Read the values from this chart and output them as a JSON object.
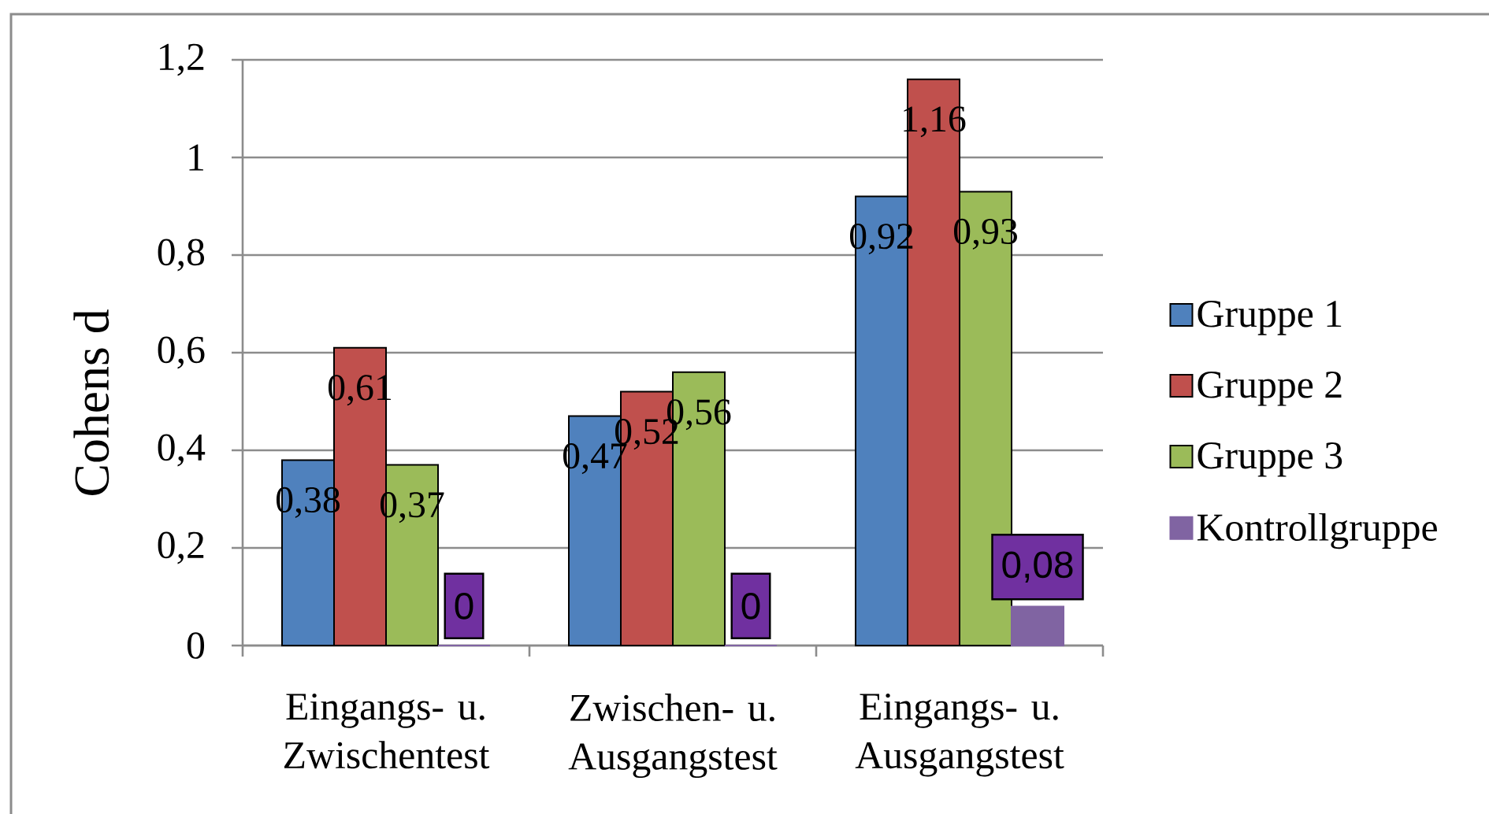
{
  "chart_data": {
    "type": "bar",
    "ylabel": "Cohens d",
    "categories": [
      "Eingangs- u. Zwischentest",
      "Zwischen- u. Ausgangstest",
      "Eingangs- u. Ausgangstest"
    ],
    "series": [
      {
        "name": "Gruppe 1",
        "color": "#4f81bd",
        "values": [
          0.38,
          0.47,
          0.92
        ],
        "value_labels": [
          "0,38",
          "0,47",
          "0,92"
        ]
      },
      {
        "name": "Gruppe 2",
        "color": "#c0504d",
        "values": [
          0.61,
          0.52,
          1.16
        ],
        "value_labels": [
          "0,61",
          "0,52",
          "1,16"
        ]
      },
      {
        "name": "Gruppe 3",
        "color": "#9bbb59",
        "values": [
          0.37,
          0.56,
          0.93
        ],
        "value_labels": [
          "0,37",
          "0,56",
          "0,93"
        ]
      },
      {
        "name": "Kontrollgruppe",
        "color": "#8064a2",
        "values": [
          0,
          0,
          0.08
        ],
        "value_labels": [
          "0",
          "0",
          "0,08"
        ]
      }
    ],
    "ylim": [
      0,
      1.2
    ],
    "yticks": [
      0,
      {
        "value": 0.2,
        "label": "0,2"
      },
      {
        "value": 0.4,
        "label": "0,4"
      },
      {
        "value": 0.6,
        "label": "0,6"
      },
      {
        "value": 0.8,
        "label": "0,8"
      },
      1,
      {
        "value": 1.2,
        "label": "1,2"
      }
    ],
    "grid": "y",
    "legend": "right"
  }
}
